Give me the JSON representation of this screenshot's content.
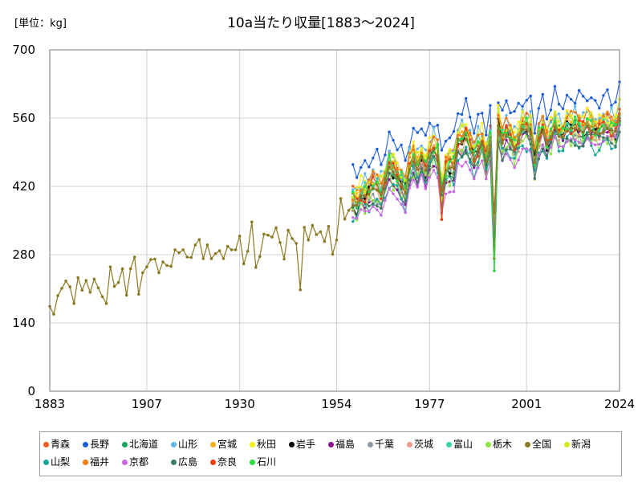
{
  "chart_data": {
    "type": "line",
    "title": "10a当たり収量[1883～2024]",
    "unit_label": "[単位：kg]",
    "xlim": [
      1883,
      2024
    ],
    "ylim": [
      0,
      700
    ],
    "x_ticks": [
      "1883",
      "1907",
      "1930",
      "1954",
      "1977",
      "2001",
      "2024"
    ],
    "y_ticks": [
      "0",
      "140",
      "280",
      "420",
      "560",
      "700"
    ],
    "grid": true,
    "legend_position": "bottom",
    "national": {
      "name": "全国",
      "color": "#8c7a23",
      "x": [
        1883,
        1884,
        1885,
        1886,
        1887,
        1888,
        1889,
        1890,
        1891,
        1892,
        1893,
        1894,
        1895,
        1896,
        1897,
        1898,
        1899,
        1900,
        1901,
        1902,
        1903,
        1904,
        1905,
        1906,
        1907,
        1908,
        1909,
        1910,
        1911,
        1912,
        1913,
        1914,
        1915,
        1916,
        1917,
        1918,
        1919,
        1920,
        1921,
        1922,
        1923,
        1924,
        1925,
        1926,
        1927,
        1928,
        1929,
        1930,
        1931,
        1932,
        1933,
        1934,
        1935,
        1936,
        1937,
        1938,
        1939,
        1940,
        1941,
        1942,
        1943,
        1944,
        1945,
        1946,
        1947,
        1948,
        1949,
        1950,
        1951,
        1952,
        1953,
        1954,
        1955,
        1956,
        1957,
        1958,
        1959,
        1960,
        1961,
        1962,
        1963,
        1964,
        1965,
        1966,
        1967,
        1968,
        1969,
        1970,
        1971,
        1972,
        1973,
        1974,
        1975,
        1976,
        1977,
        1978,
        1979,
        1980,
        1981,
        1982,
        1983,
        1984,
        1985,
        1986,
        1987,
        1988,
        1989,
        1990,
        1991,
        1992,
        1993,
        1994,
        1995,
        1996,
        1997,
        1998,
        1999,
        2000,
        2001,
        2002,
        2003,
        2004,
        2005,
        2006,
        2007,
        2008,
        2009,
        2010,
        2011,
        2012,
        2013,
        2014,
        2015,
        2016,
        2017,
        2018,
        2019,
        2020,
        2021,
        2022,
        2023,
        2024
      ],
      "values": [
        174,
        158,
        196,
        211,
        226,
        214,
        180,
        233,
        207,
        227,
        203,
        230,
        212,
        194,
        180,
        255,
        215,
        223,
        251,
        197,
        251,
        275,
        199,
        243,
        255,
        270,
        271,
        243,
        265,
        258,
        256,
        290,
        284,
        290,
        275,
        274,
        300,
        311,
        272,
        300,
        272,
        282,
        288,
        272,
        297,
        290,
        290,
        318,
        261,
        287,
        347,
        254,
        276,
        322,
        320,
        316,
        335,
        305,
        271,
        330,
        313,
        303,
        208,
        336,
        310,
        340,
        321,
        327,
        307,
        338,
        281,
        310,
        395,
        353,
        371,
        381,
        381,
        401,
        400,
        404,
        416,
        412,
        403,
        435,
        459,
        449,
        437,
        425,
        406,
        455,
        470,
        455,
        481,
        453,
        478,
        495,
        482,
        412,
        453,
        458,
        459,
        517,
        509,
        516,
        497,
        476,
        496,
        509,
        470,
        504,
        367,
        544,
        509,
        525,
        515,
        499,
        515,
        537,
        536,
        527,
        469,
        514,
        532,
        507,
        522,
        543,
        522,
        522,
        533,
        540,
        539,
        536,
        531,
        544,
        534,
        529,
        528,
        531,
        539,
        536,
        533,
        560
      ]
    },
    "series": [
      {
        "name": "青森",
        "color": "#ef5a24"
      },
      {
        "name": "長野",
        "color": "#1d5cd8"
      },
      {
        "name": "北海道",
        "color": "#19a35b"
      },
      {
        "name": "山形",
        "color": "#5fb7ee"
      },
      {
        "name": "宮城",
        "color": "#f2b01e"
      },
      {
        "name": "秋田",
        "color": "#f7ee17"
      },
      {
        "name": "岩手",
        "color": "#000000"
      },
      {
        "name": "福島",
        "color": "#8a128f"
      },
      {
        "name": "千葉",
        "color": "#8f97a3"
      },
      {
        "name": "茨城",
        "color": "#ee9c88"
      },
      {
        "name": "富山",
        "color": "#35d5a9"
      },
      {
        "name": "栃木",
        "color": "#8fe43d"
      },
      {
        "name": "全国",
        "color": "#8c7a23"
      },
      {
        "name": "新潟",
        "color": "#d5ea1d"
      },
      {
        "name": "山梨",
        "color": "#17a69c"
      },
      {
        "name": "福井",
        "color": "#ee7d0f"
      },
      {
        "name": "京都",
        "color": "#c869e2"
      },
      {
        "name": "広島",
        "color": "#3b7a63"
      },
      {
        "name": "奈良",
        "color": "#ee3f0f"
      },
      {
        "name": "石川",
        "color": "#29dc41"
      }
    ]
  }
}
